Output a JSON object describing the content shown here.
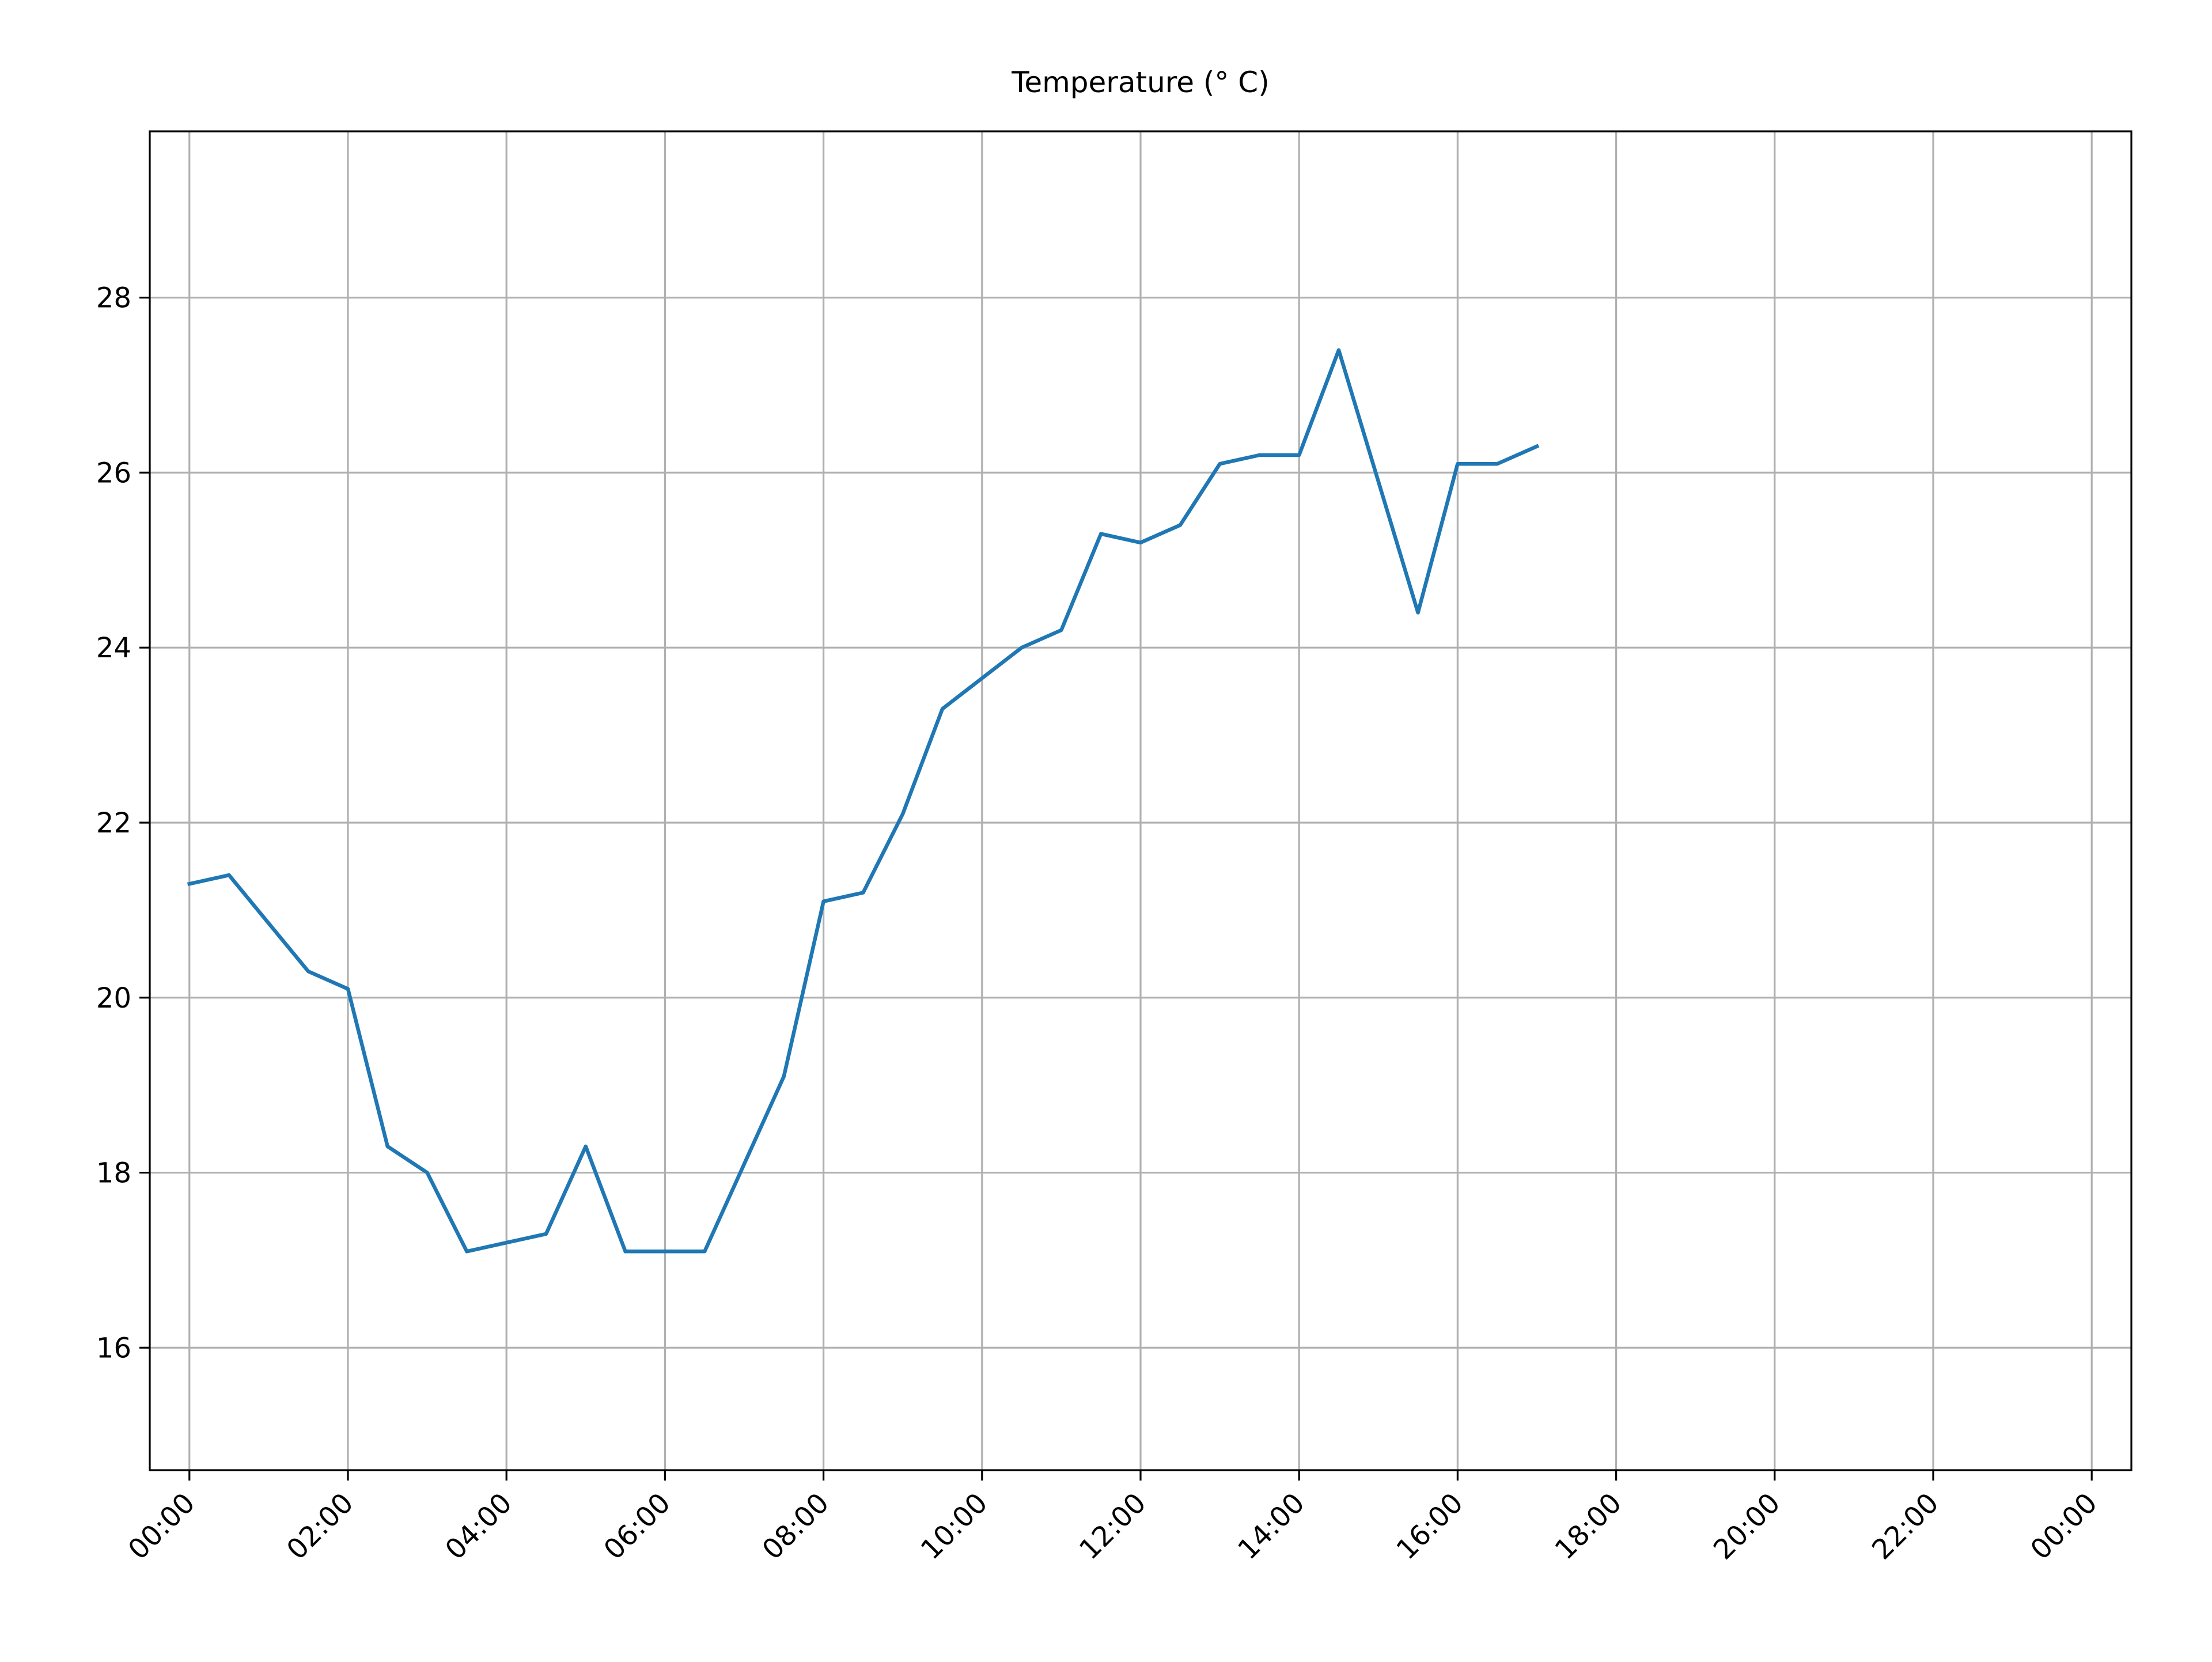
{
  "chart_data": {
    "type": "line",
    "title": "Temperature (° C)",
    "xlabel": "",
    "ylabel": "",
    "x_tick_labels": [
      "00:00",
      "02:00",
      "04:00",
      "06:00",
      "08:00",
      "10:00",
      "12:00",
      "14:00",
      "16:00",
      "18:00",
      "20:00",
      "22:00",
      "00:00"
    ],
    "xlim": [
      "00:00",
      "24:00"
    ],
    "y_ticks": [
      16,
      18,
      20,
      22,
      24,
      26,
      28
    ],
    "ylim": [
      14.6,
      29.9
    ],
    "grid": true,
    "series": [
      {
        "color": "#1f77b4",
        "x": [
          "00:00",
          "00:30",
          "01:00",
          "01:30",
          "02:00",
          "02:30",
          "03:00",
          "03:30",
          "04:00",
          "04:30",
          "05:00",
          "05:30",
          "06:00",
          "06:30",
          "07:00",
          "07:30",
          "08:00",
          "08:30",
          "09:00",
          "09:30",
          "10:00",
          "10:30",
          "11:00",
          "11:30",
          "12:00",
          "12:30",
          "13:00",
          "13:30",
          "14:00",
          "14:30",
          "15:00",
          "15:30",
          "16:00",
          "16:30",
          "17:00"
        ],
        "y": [
          21.3,
          21.4,
          20.85,
          20.3,
          20.1,
          18.3,
          18.0,
          17.1,
          17.2,
          17.3,
          18.3,
          17.1,
          17.1,
          17.1,
          18.1,
          19.1,
          21.1,
          21.2,
          22.1,
          23.3,
          23.65,
          24.0,
          24.2,
          25.3,
          25.2,
          25.4,
          26.1,
          26.2,
          26.2,
          27.4,
          25.9,
          24.4,
          26.1,
          26.1,
          26.3
        ]
      }
    ]
  }
}
